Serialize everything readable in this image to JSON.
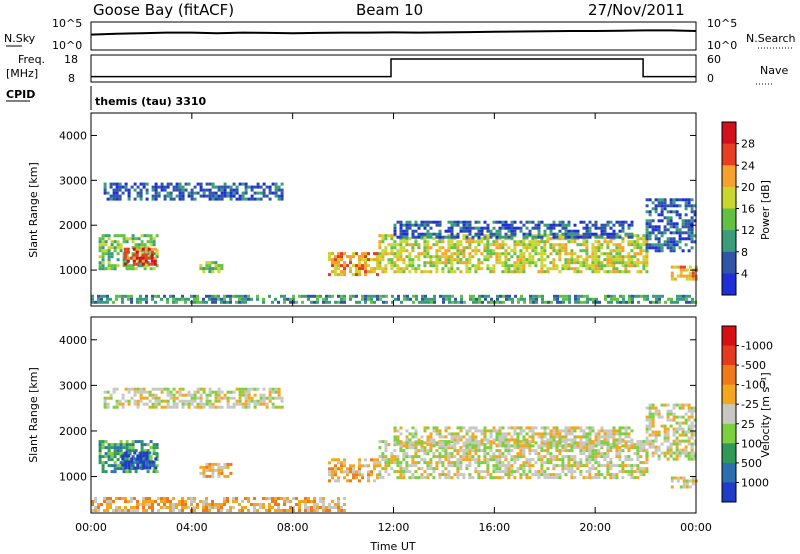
{
  "header": {
    "station": "Goose Bay (fitACF)",
    "beam": "Beam 10",
    "date": "27/Nov/2011"
  },
  "cpid": {
    "label": "CPID",
    "program": "themis (tau) 3310"
  },
  "chart_data": [
    {
      "type": "line",
      "left_label": "N.Sky",
      "right_label": "N.Search",
      "left_ticks": [
        "10^5",
        "10^0"
      ],
      "right_ticks": [
        "10^5",
        "10^0"
      ],
      "series": [
        {
          "values": [
            0.55,
            0.58,
            0.6,
            0.62,
            0.62,
            0.6,
            0.62,
            0.61,
            0.6,
            0.61,
            0.62,
            0.62,
            0.63,
            0.62,
            0.63,
            0.64,
            0.65,
            0.66,
            0.67,
            0.68,
            0.68,
            0.69,
            0.7,
            0.7,
            0.68
          ]
        }
      ],
      "x": [
        0,
        1,
        2,
        3,
        4,
        5,
        6,
        7,
        8,
        9,
        10,
        11,
        12,
        13,
        14,
        15,
        16,
        17,
        18,
        19,
        20,
        21,
        22,
        23,
        24
      ]
    },
    {
      "type": "line",
      "left_label": "Freq.",
      "left_unit": "[MHz]",
      "right_label": "Nave",
      "left_ticks": [
        "18",
        "8"
      ],
      "right_ticks": [
        "60",
        "0"
      ],
      "series": [
        {
          "name": "Freq.",
          "x": [
            0,
            11.9,
            11.9,
            21.9,
            21.9,
            24
          ],
          "values": [
            10,
            10,
            16.5,
            16.5,
            10,
            10
          ]
        },
        {
          "name": "Nave",
          "x": [
            0,
            24
          ],
          "values": [
            18,
            18
          ]
        }
      ],
      "ylim": [
        8,
        18
      ]
    },
    {
      "type": "heatmap",
      "ylabel": "Slant Range [km]",
      "xlim": [
        0,
        24
      ],
      "ylim": [
        200,
        4500
      ],
      "yticks": [
        "1000",
        "2000",
        "3000",
        "4000"
      ],
      "colorbar_label": "Power [dB]",
      "colorbar_ticks": [
        "4",
        "8",
        "12",
        "16",
        "20",
        "24",
        "28"
      ],
      "colorbar_colors": [
        "#1f2fd8",
        "#2f55a8",
        "#3a9c7a",
        "#62c043",
        "#c8d62e",
        "#f5a12a",
        "#e83d20",
        "#d0101a"
      ],
      "regions": [
        {
          "x0": 0.3,
          "x1": 2.6,
          "r0": 1000,
          "r1": 1800,
          "level": 3
        },
        {
          "x0": 1.3,
          "x1": 2.6,
          "r0": 1100,
          "r1": 1500,
          "level": 6
        },
        {
          "x0": 0.5,
          "x1": 7.6,
          "r0": 2550,
          "r1": 2950,
          "level": 1
        },
        {
          "x0": 4.3,
          "x1": 5.2,
          "r0": 950,
          "r1": 1200,
          "level": 3
        },
        {
          "x0": 9.4,
          "x1": 11.4,
          "r0": 900,
          "r1": 1400,
          "level": 5
        },
        {
          "x0": 11.4,
          "x1": 22.0,
          "r0": 950,
          "r1": 1800,
          "level": 4
        },
        {
          "x0": 12.0,
          "x1": 21.5,
          "r0": 1700,
          "r1": 2100,
          "level": 1
        },
        {
          "x0": 22.0,
          "x1": 24.0,
          "r0": 1400,
          "r1": 2600,
          "level": 1
        },
        {
          "x0": 23.0,
          "x1": 24.0,
          "r0": 800,
          "r1": 1100,
          "level": 5
        },
        {
          "x0": 0.0,
          "x1": 24.0,
          "r0": 250,
          "r1": 450,
          "level": 2
        }
      ]
    },
    {
      "type": "heatmap",
      "xlabel": "Time UT",
      "ylabel": "Slant Range [km]",
      "xlim": [
        0,
        24
      ],
      "ylim": [
        200,
        4500
      ],
      "xticks": [
        "00:00",
        "04:00",
        "08:00",
        "12:00",
        "16:00",
        "20:00",
        "00:00"
      ],
      "yticks": [
        "1000",
        "2000",
        "3000",
        "4000"
      ],
      "colorbar_label": "Velocity [m s⁻¹]",
      "colorbar_ticks": [
        "1000",
        "500",
        "100",
        "25",
        "-25",
        "-100",
        "-500",
        "-1000"
      ],
      "colorbar_colors": [
        "#1f3cc8",
        "#2b6fb0",
        "#2f9a57",
        "#7ccf3e",
        "#c8c8c2",
        "#f4a71e",
        "#ef7a18",
        "#e43b1c",
        "#d80f12"
      ],
      "regions": [
        {
          "x0": 0.3,
          "x1": 2.6,
          "r0": 1100,
          "r1": 1800,
          "level": 2
        },
        {
          "x0": 1.2,
          "x1": 2.6,
          "r0": 1200,
          "r1": 1550,
          "level": 0
        },
        {
          "x0": 0.5,
          "x1": 7.6,
          "r0": 2550,
          "r1": 2950,
          "level": 4
        },
        {
          "x0": 4.3,
          "x1": 5.5,
          "r0": 1000,
          "r1": 1300,
          "level": 5
        },
        {
          "x0": 9.4,
          "x1": 11.4,
          "r0": 900,
          "r1": 1400,
          "level": 5
        },
        {
          "x0": 11.4,
          "x1": 22.0,
          "r0": 950,
          "r1": 1800,
          "level": 4
        },
        {
          "x0": 12.0,
          "x1": 21.5,
          "r0": 1700,
          "r1": 2100,
          "level": 4
        },
        {
          "x0": 22.0,
          "x1": 24.0,
          "r0": 1400,
          "r1": 2600,
          "level": 4
        },
        {
          "x0": 23.0,
          "x1": 24.0,
          "r0": 800,
          "r1": 1000,
          "level": 4
        },
        {
          "x0": 0.0,
          "x1": 10.0,
          "r0": 250,
          "r1": 550,
          "level": 5
        }
      ]
    }
  ]
}
